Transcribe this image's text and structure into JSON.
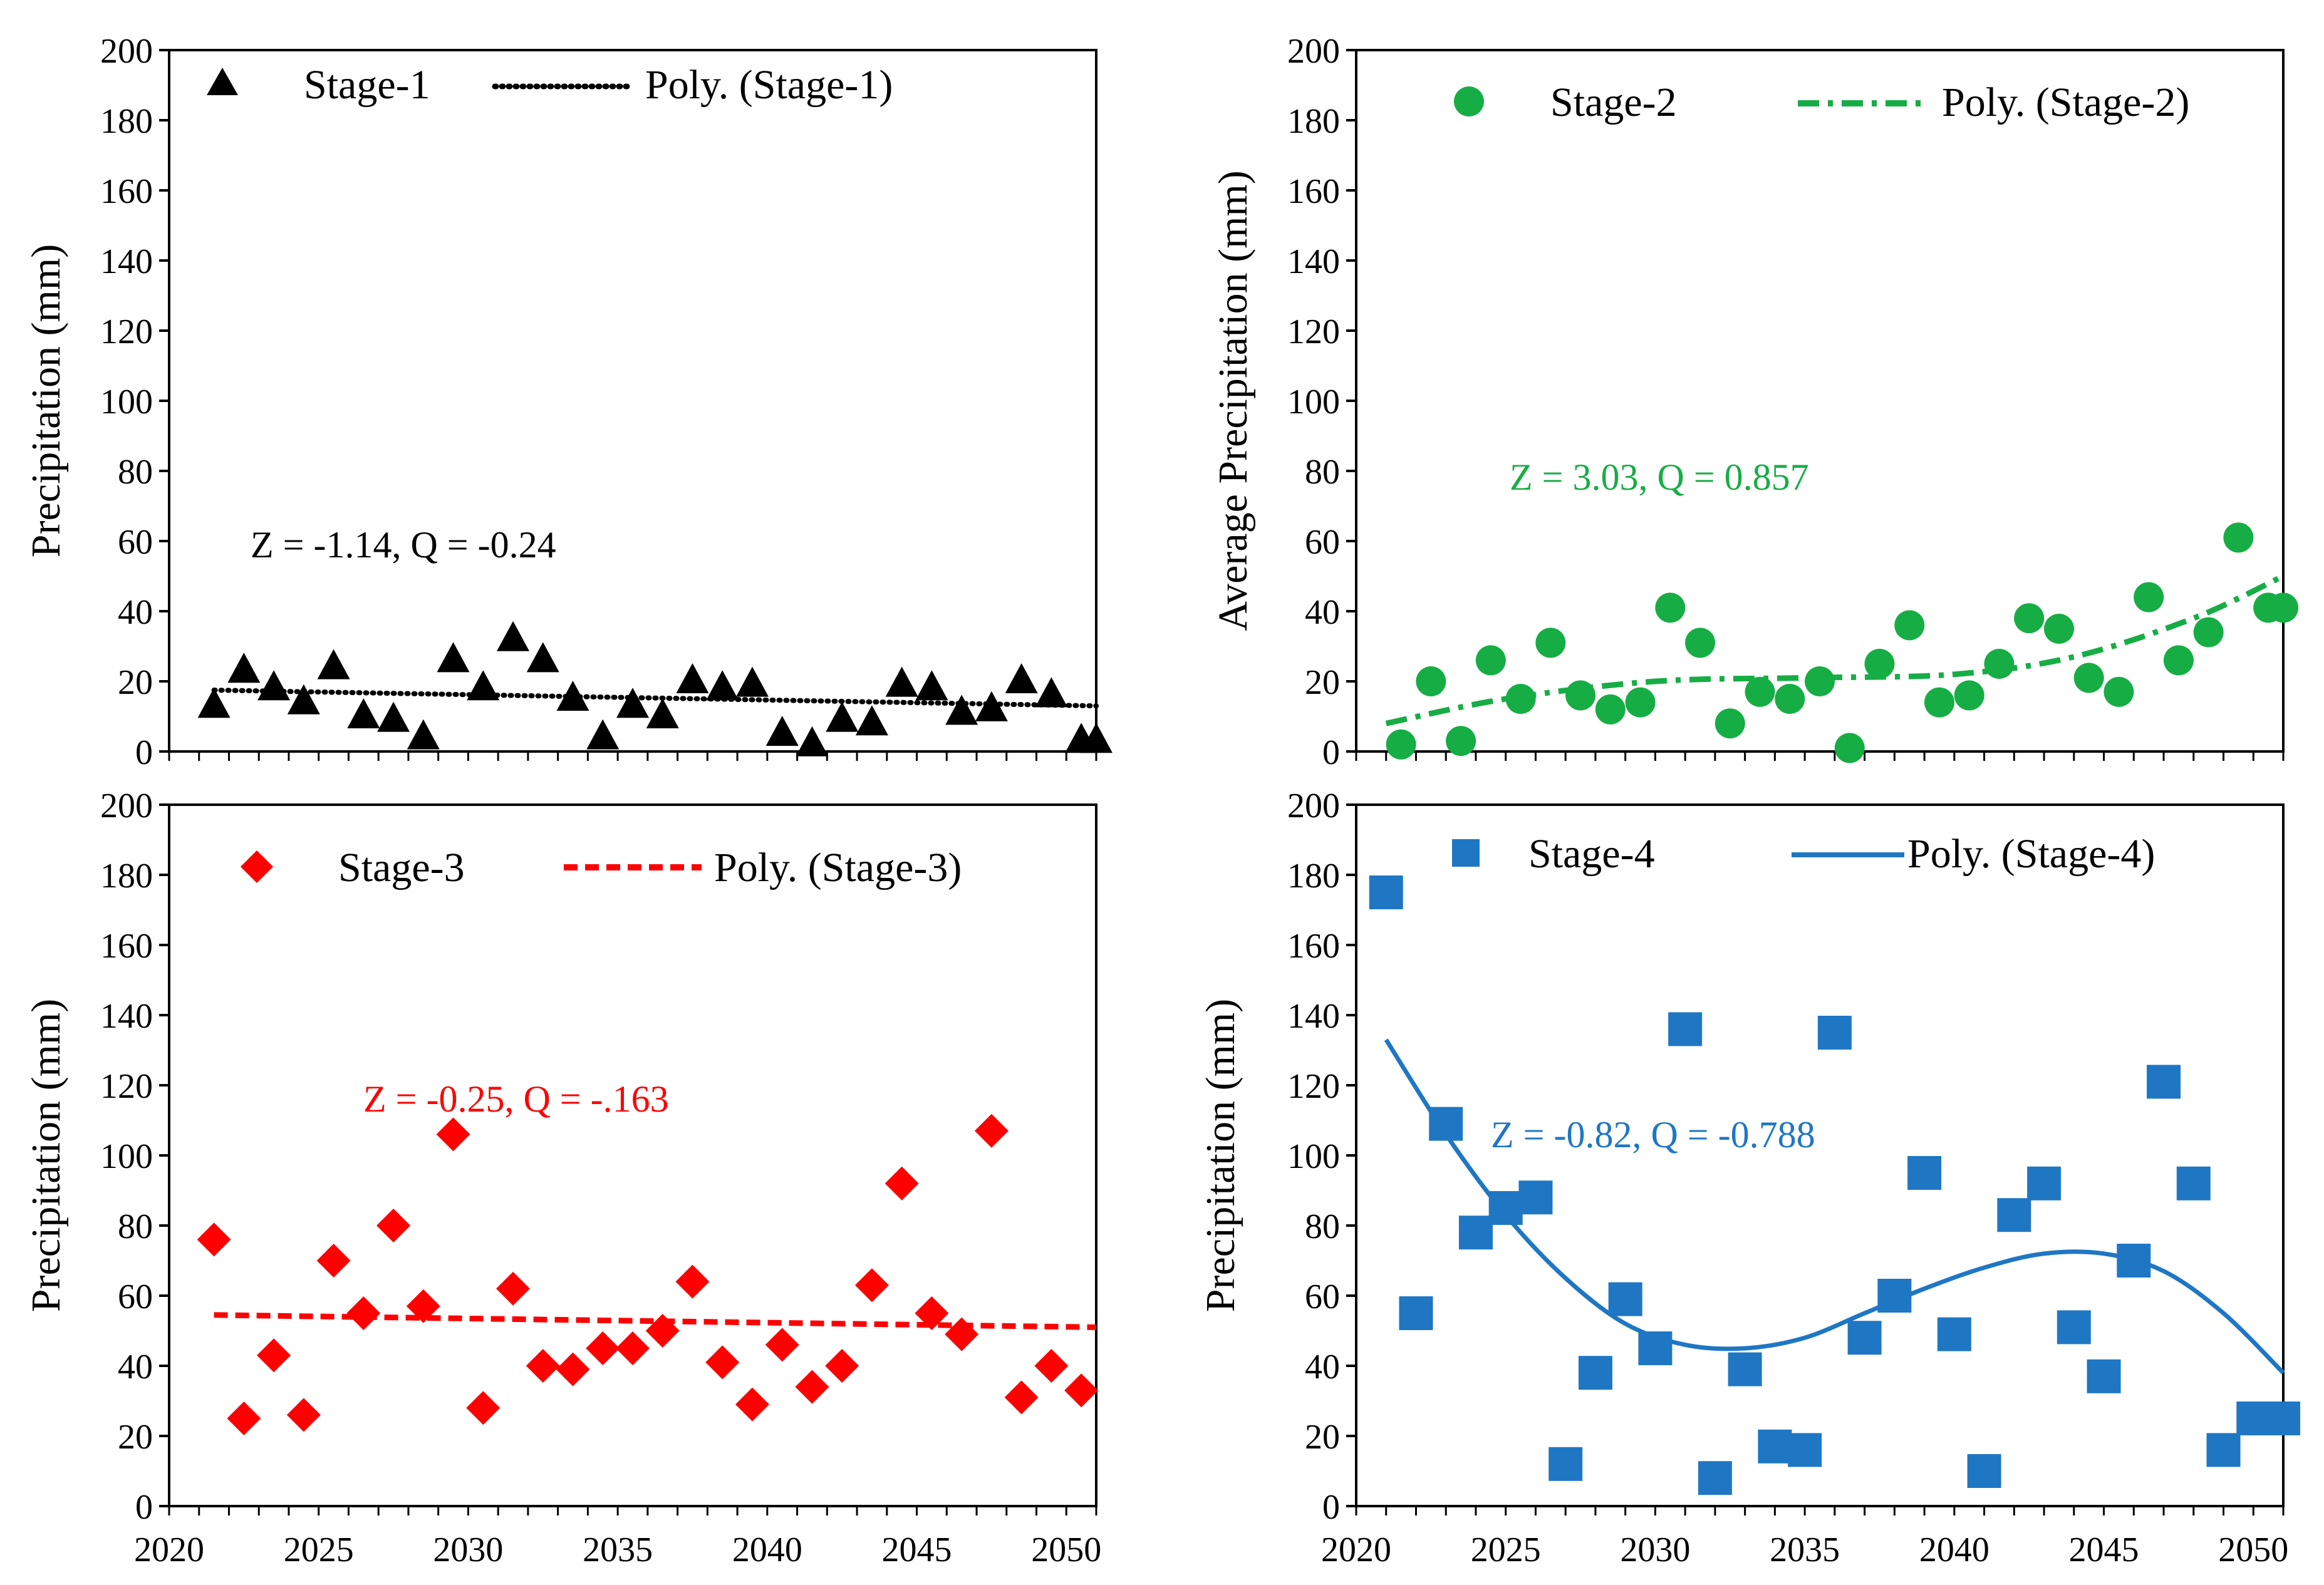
{
  "colors": {
    "stage1": "#000000",
    "stage2": "#17ad45",
    "stage3": "#ff0000",
    "stage4": "#1f77c4"
  },
  "chart_data": [
    {
      "id": "stage1",
      "type": "scatter",
      "marker": "triangle",
      "ylabel": "Precipitation (mm)",
      "xlim": [
        2020,
        2051
      ],
      "ylim": [
        0,
        200
      ],
      "x_ticks": [
        "2020",
        "2025",
        "2030",
        "2035",
        "2040",
        "2045",
        "2050"
      ],
      "y_ticks": [
        "0",
        "20",
        "40",
        "60",
        "80",
        "100",
        "120",
        "140",
        "160",
        "180",
        "200"
      ],
      "legend": {
        "series_label": "Stage-1",
        "trend_label": "Poly. (Stage-1)",
        "position": "top-left"
      },
      "annotation": "Z = -1.14, Q = -0.24",
      "trend_style": "dotted",
      "trend": {
        "type": "linear",
        "start": [
          2021.5,
          17.5
        ],
        "end": [
          2051,
          13
        ]
      },
      "x": [
        2021.5,
        2022.5,
        2023.5,
        2024.5,
        2025.5,
        2026.5,
        2027.5,
        2028.5,
        2029.5,
        2030.5,
        2031.5,
        2032.5,
        2033.5,
        2034.5,
        2035.5,
        2036.5,
        2037.5,
        2038.5,
        2039.5,
        2040.5,
        2041.5,
        2042.5,
        2043.5,
        2044.5,
        2045.5,
        2046.5,
        2047.5,
        2048.5,
        2049.5,
        2050.5,
        2051
      ],
      "values": [
        13,
        23,
        18,
        14,
        24,
        10,
        9,
        4,
        26,
        18,
        32,
        26,
        15,
        4,
        13,
        10,
        20,
        18,
        19,
        5,
        2,
        9,
        8,
        19,
        18,
        11,
        12,
        20,
        16,
        3,
        3
      ]
    },
    {
      "id": "stage2",
      "type": "scatter",
      "marker": "circle",
      "ylabel": "Average Precipitation (mm)",
      "xlim": [
        2020,
        2051
      ],
      "ylim": [
        0,
        200
      ],
      "x_ticks": [
        "2020",
        "2025",
        "2030",
        "2035",
        "2040",
        "2045",
        "2050"
      ],
      "y_ticks": [
        "0",
        "20",
        "40",
        "60",
        "80",
        "100",
        "120",
        "140",
        "160",
        "180",
        "200"
      ],
      "legend": {
        "series_label": "Stage-2",
        "trend_label": "Poly. (Stage-2)",
        "position": "top"
      },
      "annotation": "Z = 3.03, Q = 0.857",
      "trend_style": "dash-dot",
      "trend": {
        "type": "curve",
        "x": [
          2021,
          2025,
          2030,
          2035,
          2040,
          2044,
          2048,
          2051
        ],
        "y": [
          8,
          15,
          20,
          21,
          22,
          27,
          38,
          50
        ]
      },
      "x": [
        2021.5,
        2022.5,
        2023.5,
        2024.5,
        2025.5,
        2026.5,
        2027.5,
        2028.5,
        2029.5,
        2030.5,
        2031.5,
        2032.5,
        2033.5,
        2034.5,
        2035.5,
        2036.5,
        2037.5,
        2038.5,
        2039.5,
        2040.5,
        2041.5,
        2042.5,
        2043.5,
        2044.5,
        2045.5,
        2046.5,
        2047.5,
        2048.5,
        2049.5,
        2050.5,
        2051
      ],
      "values": [
        2,
        20,
        3,
        26,
        15,
        31,
        16,
        12,
        14,
        41,
        31,
        8,
        17,
        15,
        20,
        1,
        25,
        36,
        14,
        16,
        25,
        38,
        35,
        21,
        17,
        44,
        26,
        34,
        61,
        41,
        41
      ]
    },
    {
      "id": "stage3",
      "type": "scatter",
      "marker": "diamond",
      "ylabel": "Precipitation (mm)",
      "xlim": [
        2020,
        2051
      ],
      "ylim": [
        0,
        200
      ],
      "x_ticks": [
        "2020",
        "2025",
        "2030",
        "2035",
        "2040",
        "2045",
        "2050"
      ],
      "y_ticks": [
        "0",
        "20",
        "40",
        "60",
        "80",
        "100",
        "120",
        "140",
        "160",
        "180",
        "200"
      ],
      "legend": {
        "series_label": "Stage-3",
        "trend_label": "Poly. (Stage-3)",
        "position": "top-left"
      },
      "annotation": "Z = -0.25, Q = -.163",
      "trend_style": "dashed",
      "trend": {
        "type": "linear",
        "start": [
          2021.5,
          54.5
        ],
        "end": [
          2051,
          51
        ]
      },
      "x": [
        2021.5,
        2022.5,
        2023.5,
        2024.5,
        2025.5,
        2026.5,
        2027.5,
        2028.5,
        2029.5,
        2030.5,
        2031.5,
        2032.5,
        2033.5,
        2034.5,
        2035.5,
        2036.5,
        2037.5,
        2038.5,
        2039.5,
        2040.5,
        2041.5,
        2042.5,
        2043.5,
        2044.5,
        2045.5,
        2046.5,
        2047.5,
        2048.5,
        2049.5,
        2050.5
      ],
      "values": [
        76,
        25,
        43,
        26,
        70,
        55,
        80,
        57,
        106,
        28,
        62,
        40,
        39,
        45,
        45,
        50,
        64,
        41,
        29,
        46,
        34,
        40,
        63,
        92,
        55,
        49,
        107,
        31,
        40,
        33
      ]
    },
    {
      "id": "stage4",
      "type": "scatter",
      "marker": "square",
      "ylabel": "Precipitation (mm)",
      "xlim": [
        2020,
        2051
      ],
      "ylim": [
        0,
        200
      ],
      "x_ticks": [
        "2020",
        "2025",
        "2030",
        "2035",
        "2040",
        "2045",
        "2050"
      ],
      "y_ticks": [
        "0",
        "20",
        "40",
        "60",
        "80",
        "100",
        "120",
        "140",
        "160",
        "180",
        "200"
      ],
      "legend": {
        "series_label": "Stage-4",
        "trend_label": "Poly. (Stage-4)",
        "position": "top"
      },
      "annotation": "Z = -0.82, Q = -0.788",
      "trend_style": "solid",
      "trend": {
        "type": "curve",
        "x": [
          2021,
          2023,
          2025,
          2027,
          2029,
          2031,
          2033,
          2035,
          2037,
          2039,
          2041,
          2043,
          2045,
          2047,
          2049,
          2051
        ],
        "y": [
          133,
          106,
          83,
          65,
          52,
          46,
          45,
          48,
          55,
          62,
          68,
          72,
          72,
          67,
          55,
          38
        ]
      },
      "x": [
        2021,
        2022,
        2023,
        2024,
        2025,
        2026,
        2027,
        2028,
        2029,
        2030,
        2031,
        2032,
        2033,
        2034,
        2035,
        2036,
        2037,
        2038,
        2039,
        2040,
        2041,
        2042,
        2043,
        2044,
        2045,
        2046,
        2047,
        2048,
        2049,
        2050,
        2051
      ],
      "values": [
        175,
        55,
        109,
        78,
        85,
        88,
        12,
        38,
        59,
        45,
        136,
        8,
        39,
        17,
        16,
        135,
        48,
        60,
        95,
        49,
        10,
        83,
        92,
        51,
        37,
        70,
        121,
        92,
        16,
        25,
        25
      ]
    }
  ]
}
